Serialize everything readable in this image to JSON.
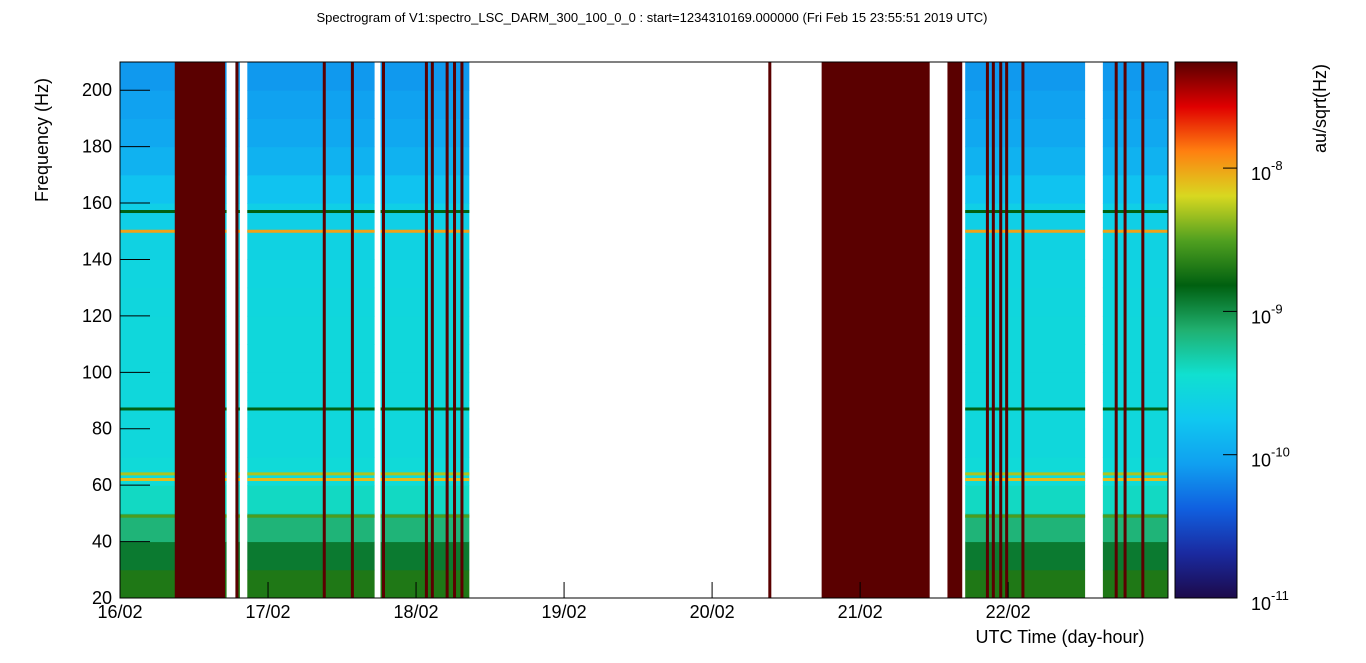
{
  "chart_data": {
    "type": "spectrogram",
    "title": "Spectrogram of V1:spectro_LSC_DARM_300_100_0_0 : start=1234310169.000000 (Fri Feb 15 23:55:51 2019 UTC)",
    "x_label": "UTC Time (day-hour)",
    "y_label": "Frequency (Hz)",
    "colorbar_label": "au/sqrt(Hz)",
    "xlim": [
      0,
      7.08
    ],
    "xticks": [
      {
        "value": 0,
        "label": "16/02"
      },
      {
        "value": 1,
        "label": "17/02"
      },
      {
        "value": 2,
        "label": "18/02"
      },
      {
        "value": 3,
        "label": "19/02"
      },
      {
        "value": 4,
        "label": "20/02"
      },
      {
        "value": 5,
        "label": "21/02"
      },
      {
        "value": 6,
        "label": "22/02"
      }
    ],
    "ylim": [
      20,
      210
    ],
    "yticks": [
      20,
      40,
      60,
      80,
      100,
      120,
      140,
      160,
      180,
      200
    ],
    "zlim": [
      1e-11,
      5.5e-08
    ],
    "zlog": true,
    "zticks": [
      {
        "value": 1e-11,
        "label": "10",
        "exponent": "-11"
      },
      {
        "value": 1e-10,
        "label": "10",
        "exponent": "-10"
      },
      {
        "value": 1e-09,
        "label": "10",
        "exponent": "-9"
      },
      {
        "value": 1e-08,
        "label": "10",
        "exponent": "-8"
      }
    ],
    "colorscale": [
      "#1c0a4a",
      "#1a2aa0",
      "#1060e0",
      "#10a0f0",
      "#10c8f0",
      "#10e0d0",
      "#20b070",
      "#006010",
      "#50a020",
      "#d8d820",
      "#ff8010",
      "#e00000",
      "#5a0000"
    ],
    "freq_bins": [
      20,
      30,
      40,
      50,
      60,
      70,
      80,
      90,
      100,
      110,
      120,
      130,
      140,
      150,
      160,
      170,
      180,
      190,
      200,
      210
    ],
    "amplitude": [
      2e-09,
      1.2e-09,
      7e-10,
      4e-10,
      3e-10,
      2.8e-10,
      2.8e-10,
      2.8e-10,
      2.8e-10,
      2.8e-10,
      2.7e-10,
      2.6e-10,
      2.4e-10,
      2.2e-10,
      1.6e-10,
      1.2e-10,
      1e-10,
      9e-11,
      8e-11
    ],
    "segments": [
      [
        0,
        0.72
      ],
      [
        0.78,
        0.81
      ],
      [
        0.86,
        1.72
      ],
      [
        1.76,
        2.36
      ],
      [
        5.71,
        6.52
      ],
      [
        6.64,
        7.08
      ]
    ],
    "line_freqs": [
      49,
      62,
      64,
      87,
      150,
      157
    ],
    "line_amplitudes": [
      3e-09,
      8e-09,
      5e-09,
      1.5e-09,
      1e-08,
      1.5e-09
    ],
    "saturated": [
      [
        0.37,
        0.71
      ],
      [
        4.74,
        5.47
      ],
      [
        5.59,
        5.69
      ]
    ],
    "glitches": [
      0.66,
      0.79,
      1.38,
      1.57,
      1.78,
      2.07,
      2.11,
      2.21,
      2.26,
      2.31,
      4.39,
      5.86,
      5.9,
      5.95,
      5.99,
      6.1,
      6.73,
      6.79,
      6.91
    ]
  }
}
